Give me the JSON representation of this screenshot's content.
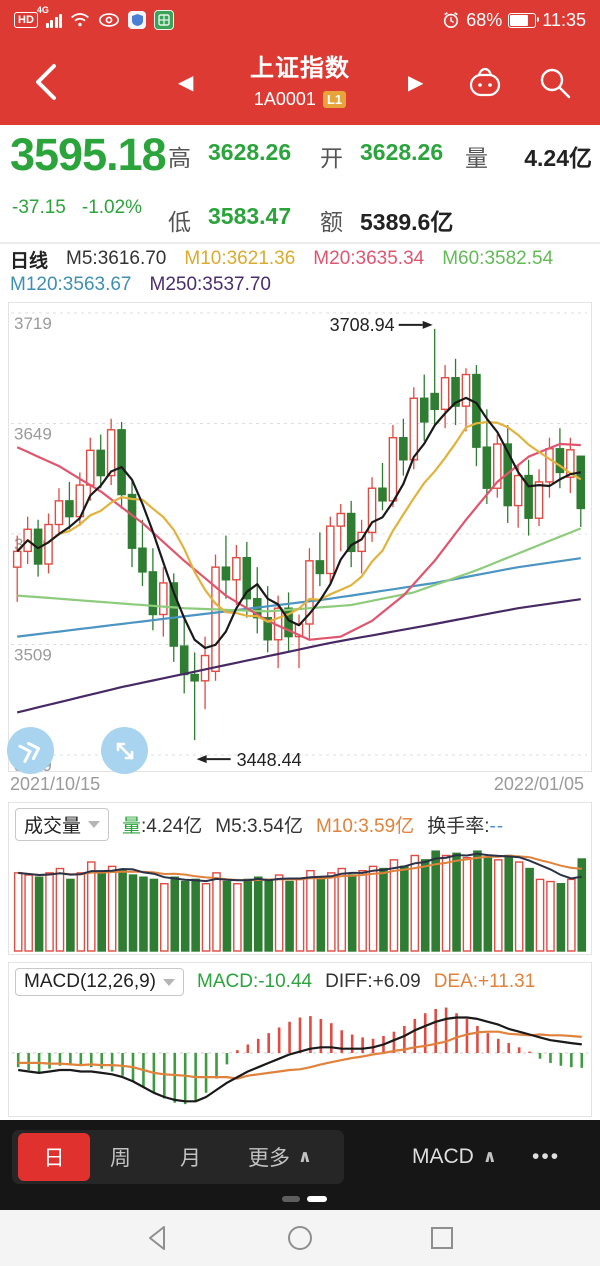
{
  "colors": {
    "app_red": "#dd3a34",
    "green": "#2ba43c",
    "candle_red": "#e24a42",
    "candle_green": "#2f7d32",
    "ma5": "#1a1a1a",
    "ma10": "#e2b33c",
    "ma20": "#e0556e",
    "ma60": "#8ecb7c",
    "ma120": "#4c94c1",
    "ma250": "#472a63",
    "orange": "#e0823c",
    "vol_ma5": "#2b3147",
    "badge_orange": "#e8a43a",
    "blue_button": "#a9d4ef",
    "grid": "#dddddd",
    "axis_text": "#9b9b9b"
  },
  "status_bar": {
    "hd": "HD",
    "network": "4G",
    "battery": "68%",
    "time": "11:35"
  },
  "header": {
    "title": "上证指数",
    "code": "1A0001",
    "badge": "L1"
  },
  "icons": {
    "prev": "◀",
    "next": "▶",
    "caret_up": "∧",
    "overflow": "•••"
  },
  "quote": {
    "price": "3595.18",
    "change": "-37.15",
    "change_pct": "-1.02%",
    "high_label": "高",
    "high": "3628.26",
    "open_label": "开",
    "open": "3628.26",
    "low_label": "低",
    "low": "3583.47",
    "volume_label": "量",
    "volume": "4.24亿",
    "amount_label": "额",
    "amount": "5389.6亿"
  },
  "ma_bar": {
    "period": "日线",
    "m5": "M5:3616.70",
    "m10": "M10:3621.36",
    "m20": "M20:3635.34",
    "m60": "M60:3582.54",
    "m120": "M120:3563.67",
    "m250": "M250:3537.70"
  },
  "volume_panel": {
    "selector": "成交量",
    "vol_key": "量",
    "vol_value": ":4.24亿",
    "m5": "M5:3.54亿",
    "m10": "M10:3.59亿",
    "turnover_label": "换手率:",
    "turnover_value": "--"
  },
  "macd_panel": {
    "selector": "MACD(12,26,9)",
    "macd": "MACD:-10.44",
    "diff": "DIFF:+6.09",
    "dea": "DEA:+11.31"
  },
  "toolbar": {
    "tab_day": "日",
    "tab_week": "周",
    "tab_month": "月",
    "more": "更多",
    "indicator": "MACD"
  },
  "chart_data": {
    "type": "candlestick",
    "title": "上证指数 日线 (Shanghai Composite daily)",
    "x_range": [
      "2021/10/15",
      "2022/01/05"
    ],
    "y_gridlines": [
      3719,
      3649,
      3579,
      3509,
      3439
    ],
    "annotations": {
      "high": "3708.94",
      "low": "3448.44"
    },
    "candles": [
      [
        3558,
        3578,
        3536,
        3568
      ],
      [
        3568,
        3590,
        3560,
        3582
      ],
      [
        3582,
        3588,
        3552,
        3560
      ],
      [
        3560,
        3592,
        3554,
        3585
      ],
      [
        3585,
        3608,
        3578,
        3600
      ],
      [
        3600,
        3612,
        3582,
        3590
      ],
      [
        3590,
        3618,
        3584,
        3610
      ],
      [
        3610,
        3640,
        3600,
        3632
      ],
      [
        3632,
        3642,
        3608,
        3616
      ],
      [
        3616,
        3652,
        3610,
        3645
      ],
      [
        3645,
        3650,
        3595,
        3604
      ],
      [
        3604,
        3614,
        3558,
        3570
      ],
      [
        3570,
        3588,
        3546,
        3555
      ],
      [
        3555,
        3570,
        3518,
        3528
      ],
      [
        3528,
        3558,
        3514,
        3548
      ],
      [
        3548,
        3554,
        3498,
        3508
      ],
      [
        3508,
        3526,
        3478,
        3490
      ],
      [
        3490,
        3504,
        3448.44,
        3486
      ],
      [
        3486,
        3514,
        3468,
        3502
      ],
      [
        3492,
        3566,
        3486,
        3558
      ],
      [
        3558,
        3578,
        3538,
        3550
      ],
      [
        3550,
        3572,
        3534,
        3564
      ],
      [
        3564,
        3574,
        3526,
        3538
      ],
      [
        3538,
        3558,
        3516,
        3526
      ],
      [
        3526,
        3546,
        3504,
        3512
      ],
      [
        3512,
        3540,
        3494,
        3532
      ],
      [
        3532,
        3542,
        3504,
        3514
      ],
      [
        3514,
        3528,
        3494,
        3522
      ],
      [
        3522,
        3570,
        3512,
        3562
      ],
      [
        3562,
        3580,
        3546,
        3554
      ],
      [
        3554,
        3590,
        3548,
        3584
      ],
      [
        3584,
        3598,
        3568,
        3592
      ],
      [
        3592,
        3600,
        3558,
        3568
      ],
      [
        3568,
        3588,
        3554,
        3580
      ],
      [
        3580,
        3615,
        3574,
        3608
      ],
      [
        3608,
        3624,
        3594,
        3600
      ],
      [
        3600,
        3648,
        3596,
        3640
      ],
      [
        3640,
        3652,
        3616,
        3626
      ],
      [
        3626,
        3672,
        3620,
        3665
      ],
      [
        3665,
        3680,
        3638,
        3650
      ],
      [
        3668,
        3708.94,
        3648,
        3658
      ],
      [
        3658,
        3686,
        3646,
        3678
      ],
      [
        3678,
        3690,
        3648,
        3660
      ],
      [
        3660,
        3684,
        3644,
        3680
      ],
      [
        3680,
        3686,
        3622,
        3634
      ],
      [
        3634,
        3658,
        3598,
        3608
      ],
      [
        3608,
        3642,
        3602,
        3636
      ],
      [
        3636,
        3648,
        3586,
        3597
      ],
      [
        3597,
        3622,
        3583,
        3616
      ],
      [
        3616,
        3626,
        3578,
        3589
      ],
      [
        3589,
        3620,
        3584,
        3612
      ],
      [
        3612,
        3640,
        3602,
        3633
      ],
      [
        3633,
        3646,
        3608,
        3618
      ],
      [
        3615,
        3640,
        3605,
        3632.33
      ],
      [
        3628.26,
        3628.26,
        3583.47,
        3595.18
      ]
    ],
    "overlays": {
      "M20": [
        [
          0,
          3634
        ],
        [
          4,
          3622
        ],
        [
          8,
          3606
        ],
        [
          12,
          3586
        ],
        [
          16,
          3562
        ],
        [
          20,
          3540
        ],
        [
          24,
          3524
        ],
        [
          28,
          3512
        ],
        [
          31,
          3514
        ],
        [
          34,
          3524
        ],
        [
          37,
          3540
        ],
        [
          40,
          3562
        ],
        [
          43,
          3588
        ],
        [
          46,
          3612
        ],
        [
          49,
          3628
        ],
        [
          52,
          3636
        ],
        [
          54,
          3635.34
        ]
      ],
      "M60": [
        [
          0,
          3540
        ],
        [
          8,
          3536
        ],
        [
          16,
          3532
        ],
        [
          24,
          3530
        ],
        [
          32,
          3534
        ],
        [
          38,
          3542
        ],
        [
          44,
          3556
        ],
        [
          50,
          3572
        ],
        [
          54,
          3582.54
        ]
      ],
      "M120": [
        [
          0,
          3514
        ],
        [
          10,
          3522
        ],
        [
          20,
          3530
        ],
        [
          30,
          3538
        ],
        [
          40,
          3548
        ],
        [
          48,
          3558
        ],
        [
          54,
          3563.67
        ]
      ],
      "M250": [
        [
          0,
          3466
        ],
        [
          10,
          3482
        ],
        [
          20,
          3496
        ],
        [
          30,
          3510
        ],
        [
          40,
          3522
        ],
        [
          48,
          3532
        ],
        [
          54,
          3537.7
        ]
      ]
    },
    "volumes_yi": [
      3.6,
      3.5,
      3.4,
      3.6,
      3.8,
      3.3,
      3.6,
      4.1,
      3.6,
      3.9,
      3.7,
      3.5,
      3.4,
      3.3,
      3.1,
      3.4,
      3.2,
      3.3,
      3.1,
      3.6,
      3.2,
      3.1,
      3.3,
      3.4,
      3.3,
      3.5,
      3.2,
      3.3,
      3.7,
      3.4,
      3.6,
      3.8,
      3.5,
      3.7,
      3.9,
      3.8,
      4.2,
      3.9,
      4.4,
      4.2,
      4.6,
      4.4,
      4.5,
      4.3,
      4.6,
      4.3,
      4.2,
      4.4,
      4.1,
      3.8,
      3.3,
      3.2,
      3.1,
      3.3,
      4.24
    ],
    "macd": {
      "diff": [
        -12,
        -13,
        -14,
        -13,
        -12,
        -12,
        -13,
        -13,
        -14,
        -15,
        -17,
        -20,
        -24,
        -28,
        -31,
        -33,
        -34,
        -34,
        -31,
        -26,
        -21,
        -17,
        -13,
        -10,
        -7,
        -4,
        -1,
        1,
        3,
        4,
        4,
        3,
        3,
        3,
        4,
        6,
        9,
        12,
        16,
        19,
        22,
        24,
        25,
        25,
        24,
        22,
        20,
        17,
        15,
        13,
        11,
        9,
        8,
        7,
        6.09
      ],
      "hist": [
        -10,
        -12,
        -14,
        -11,
        -9,
        -8,
        -9,
        -10,
        -11,
        -13,
        -16,
        -20,
        -24,
        -28,
        -32,
        -35,
        -36,
        -34,
        -28,
        -18,
        -8,
        2,
        6,
        10,
        14,
        18,
        22,
        25,
        26,
        24,
        21,
        16,
        13,
        11,
        10,
        12,
        15,
        19,
        24,
        28,
        31,
        32,
        28,
        24,
        19,
        14,
        10,
        7,
        4,
        1,
        -4,
        -7,
        -9,
        -10,
        -10.44
      ]
    }
  }
}
